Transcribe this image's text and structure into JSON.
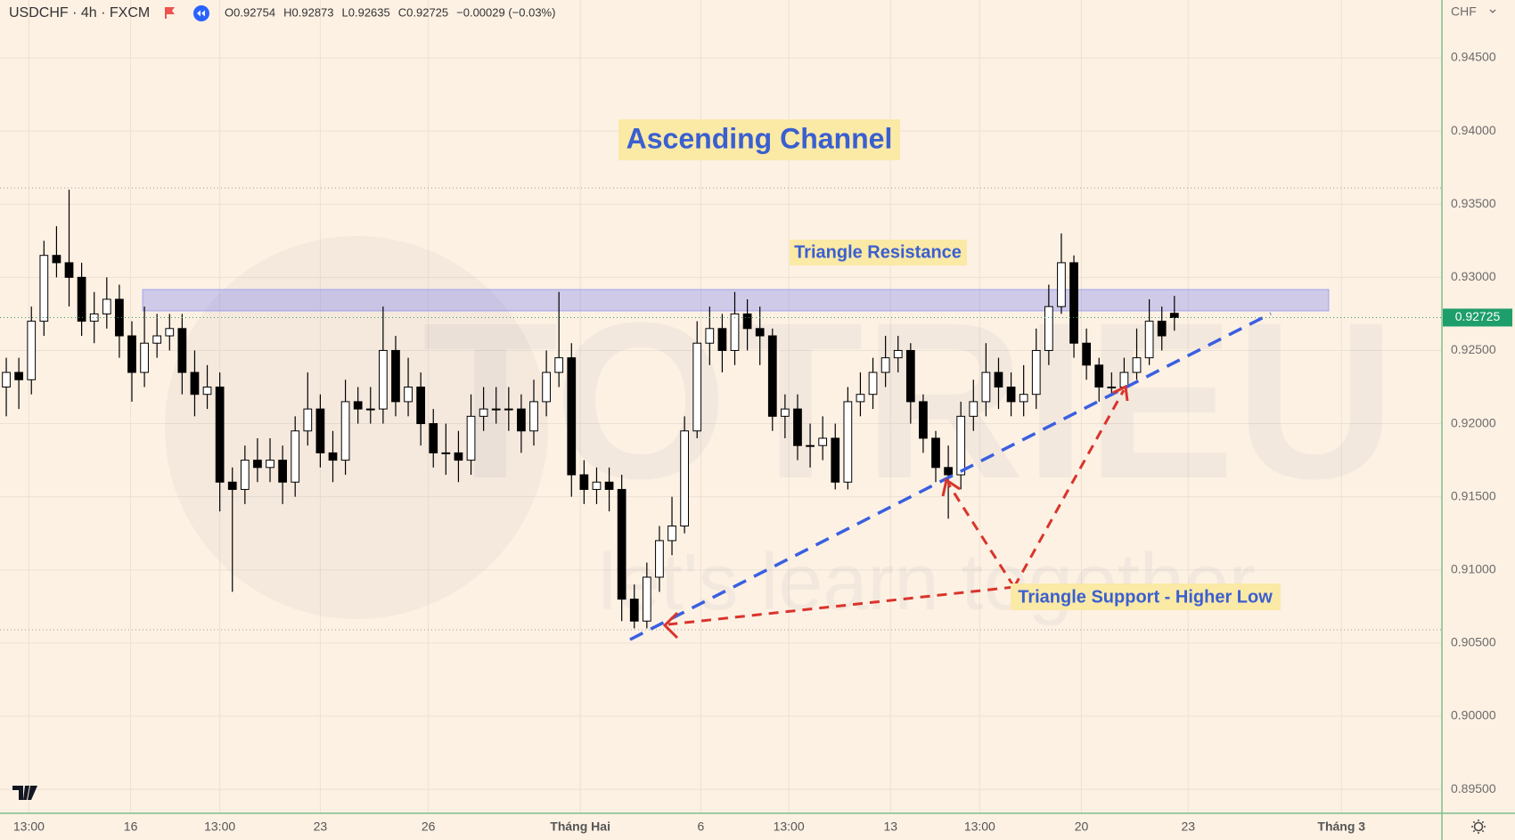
{
  "header": {
    "symbol": "USDCHF · 4h · FXCM",
    "ohlc": [
      {
        "label": "O",
        "value": 0.92754
      },
      {
        "label": "H",
        "value": 0.92873
      },
      {
        "label": "L",
        "value": 0.92635
      },
      {
        "label": "C",
        "value": 0.92725
      }
    ],
    "change": "−0.00029 (−0.03%)"
  },
  "chart_data": {
    "type": "candlestick",
    "currency": "CHF",
    "x": [
      0,
      1,
      2,
      3,
      4,
      5,
      6,
      7,
      8,
      9,
      10,
      11,
      12,
      13,
      14,
      15,
      16,
      17,
      18,
      19,
      20,
      21,
      22,
      23,
      24,
      25,
      26,
      27,
      28,
      29,
      30,
      31,
      32,
      33,
      34,
      35,
      36,
      37,
      38,
      39,
      40,
      41,
      42,
      43,
      44,
      45,
      46,
      47,
      48,
      49,
      50,
      51,
      52,
      53,
      54,
      55,
      56,
      57,
      58,
      59,
      60,
      61,
      62,
      63,
      64,
      65,
      66,
      67,
      68,
      69,
      70,
      71,
      72,
      73,
      74,
      75,
      76,
      77,
      78,
      79,
      80,
      81,
      82,
      83,
      84,
      85,
      86,
      87,
      88,
      89,
      90,
      91,
      92,
      93
    ],
    "open": [
      0.9225,
      0.9235,
      0.923,
      0.927,
      0.9315,
      0.931,
      0.93,
      0.927,
      0.9275,
      0.9285,
      0.926,
      0.9235,
      0.9255,
      0.926,
      0.9265,
      0.9235,
      0.922,
      0.9225,
      0.916,
      0.9155,
      0.9175,
      0.917,
      0.9175,
      0.916,
      0.9195,
      0.921,
      0.918,
      0.9175,
      0.9215,
      0.921,
      0.921,
      0.925,
      0.9215,
      0.9225,
      0.92,
      0.918,
      0.918,
      0.9175,
      0.9205,
      0.921,
      0.921,
      0.921,
      0.9195,
      0.9215,
      0.9235,
      0.9245,
      0.9165,
      0.9155,
      0.916,
      0.9155,
      0.908,
      0.9065,
      0.9095,
      0.912,
      0.913,
      0.9195,
      0.9255,
      0.9265,
      0.925,
      0.9275,
      0.9265,
      0.926,
      0.9205,
      0.921,
      0.9185,
      0.9185,
      0.919,
      0.916,
      0.9215,
      0.922,
      0.9235,
      0.9245,
      0.925,
      0.9215,
      0.919,
      0.917,
      0.9165,
      0.9205,
      0.9215,
      0.9235,
      0.9225,
      0.9215,
      0.922,
      0.925,
      0.928,
      0.931,
      0.9255,
      0.924,
      0.9225,
      0.9225,
      0.9235,
      0.9245,
      0.927,
      0.92754
    ],
    "high": [
      0.9245,
      0.9245,
      0.928,
      0.9325,
      0.9335,
      0.936,
      0.931,
      0.929,
      0.93,
      0.9295,
      0.927,
      0.928,
      0.9275,
      0.9275,
      0.9275,
      0.925,
      0.924,
      0.9235,
      0.917,
      0.9185,
      0.919,
      0.919,
      0.9185,
      0.9205,
      0.9235,
      0.922,
      0.9195,
      0.923,
      0.9225,
      0.9225,
      0.928,
      0.926,
      0.9245,
      0.9235,
      0.921,
      0.92,
      0.9195,
      0.922,
      0.9225,
      0.9225,
      0.9225,
      0.922,
      0.923,
      0.925,
      0.929,
      0.9255,
      0.9175,
      0.917,
      0.917,
      0.9165,
      0.909,
      0.9105,
      0.913,
      0.915,
      0.9205,
      0.927,
      0.928,
      0.9275,
      0.929,
      0.9285,
      0.928,
      0.9265,
      0.922,
      0.922,
      0.92,
      0.9205,
      0.92,
      0.9225,
      0.9235,
      0.9245,
      0.926,
      0.926,
      0.9255,
      0.922,
      0.9195,
      0.9185,
      0.9215,
      0.923,
      0.9255,
      0.9245,
      0.9235,
      0.924,
      0.9265,
      0.9295,
      0.933,
      0.9315,
      0.9265,
      0.9245,
      0.9235,
      0.9245,
      0.9265,
      0.9285,
      0.928,
      0.92873
    ],
    "low": [
      0.9205,
      0.921,
      0.922,
      0.926,
      0.93,
      0.928,
      0.926,
      0.9255,
      0.9265,
      0.9245,
      0.9215,
      0.9225,
      0.9245,
      0.925,
      0.922,
      0.9205,
      0.921,
      0.914,
      0.9085,
      0.9145,
      0.916,
      0.916,
      0.9145,
      0.915,
      0.9185,
      0.917,
      0.916,
      0.9165,
      0.92,
      0.92,
      0.92,
      0.9205,
      0.9205,
      0.9185,
      0.917,
      0.9165,
      0.916,
      0.9165,
      0.9195,
      0.92,
      0.9195,
      0.918,
      0.9185,
      0.9205,
      0.9225,
      0.915,
      0.9145,
      0.9145,
      0.914,
      0.9065,
      0.906,
      0.906,
      0.9085,
      0.911,
      0.9125,
      0.919,
      0.924,
      0.9235,
      0.924,
      0.925,
      0.924,
      0.9195,
      0.919,
      0.9175,
      0.917,
      0.9175,
      0.9155,
      0.9155,
      0.9205,
      0.921,
      0.9225,
      0.9235,
      0.92,
      0.918,
      0.916,
      0.9135,
      0.9155,
      0.9195,
      0.9205,
      0.921,
      0.9205,
      0.9205,
      0.921,
      0.924,
      0.9275,
      0.9245,
      0.923,
      0.9215,
      0.922,
      0.9225,
      0.923,
      0.924,
      0.925,
      0.92635
    ],
    "close": [
      0.9235,
      0.923,
      0.927,
      0.9315,
      0.931,
      0.93,
      0.927,
      0.9275,
      0.9285,
      0.926,
      0.9235,
      0.9255,
      0.926,
      0.9265,
      0.9235,
      0.922,
      0.9225,
      0.916,
      0.9155,
      0.9175,
      0.917,
      0.9175,
      0.916,
      0.9195,
      0.921,
      0.918,
      0.9175,
      0.9215,
      0.921,
      0.921,
      0.925,
      0.9215,
      0.9225,
      0.92,
      0.918,
      0.918,
      0.9175,
      0.9205,
      0.921,
      0.921,
      0.921,
      0.9195,
      0.9215,
      0.9235,
      0.9245,
      0.9165,
      0.9155,
      0.916,
      0.9155,
      0.908,
      0.9065,
      0.9095,
      0.912,
      0.913,
      0.9195,
      0.9255,
      0.9265,
      0.925,
      0.9275,
      0.9265,
      0.926,
      0.9205,
      0.921,
      0.9185,
      0.9185,
      0.919,
      0.916,
      0.9215,
      0.922,
      0.9235,
      0.9245,
      0.925,
      0.9215,
      0.919,
      0.917,
      0.9165,
      0.9205,
      0.9215,
      0.9235,
      0.9225,
      0.9215,
      0.922,
      0.925,
      0.928,
      0.931,
      0.9255,
      0.924,
      0.9225,
      0.9225,
      0.9235,
      0.9245,
      0.927,
      0.926,
      0.92725
    ],
    "up_color": "#ffffff",
    "down_color": "#000000",
    "outline_color": "#000000",
    "xlim": [
      -0.5,
      114.3
    ],
    "xticks": [
      {
        "value": 1.8,
        "label": "13:00"
      },
      {
        "value": 9.9,
        "label": "16"
      },
      {
        "value": 17.0,
        "label": "13:00"
      },
      {
        "value": 25.0,
        "label": "23"
      },
      {
        "value": 33.6,
        "label": "26"
      },
      {
        "value": 45.7,
        "label": "Tháng Hai"
      },
      {
        "value": 55.3,
        "label": "6"
      },
      {
        "value": 62.3,
        "label": "13:00"
      },
      {
        "value": 70.4,
        "label": "13"
      },
      {
        "value": 77.5,
        "label": "13:00"
      },
      {
        "value": 85.6,
        "label": "20"
      },
      {
        "value": 94.1,
        "label": "23"
      },
      {
        "value": 106.3,
        "label": "Tháng 3"
      }
    ],
    "ylim": [
      0.89336,
      0.94896
    ],
    "yticks": [
      {
        "value": 0.945,
        "label": "0.94500"
      },
      {
        "value": 0.94,
        "label": "0.94000"
      },
      {
        "value": 0.935,
        "label": "0.93500"
      },
      {
        "value": 0.93,
        "label": "0.93000"
      },
      {
        "value": 0.925,
        "label": "0.92500"
      },
      {
        "value": 0.92,
        "label": "0.92000"
      },
      {
        "value": 0.915,
        "label": "0.91500"
      },
      {
        "value": 0.91,
        "label": "0.91000"
      },
      {
        "value": 0.905,
        "label": "0.90500"
      },
      {
        "value": 0.9,
        "label": "0.90000"
      },
      {
        "value": 0.895,
        "label": "0.89500"
      }
    ],
    "grid": true,
    "last_price": {
      "value": 0.92725,
      "label": "0.92725"
    },
    "annotations": {
      "title": "Ascending Channel",
      "resistance": "Triangle Resistance",
      "support": "Triangle Support - Higher Low"
    },
    "watermark": {
      "brand": "TOTRIEU",
      "slogan": "let's learn together"
    }
  }
}
